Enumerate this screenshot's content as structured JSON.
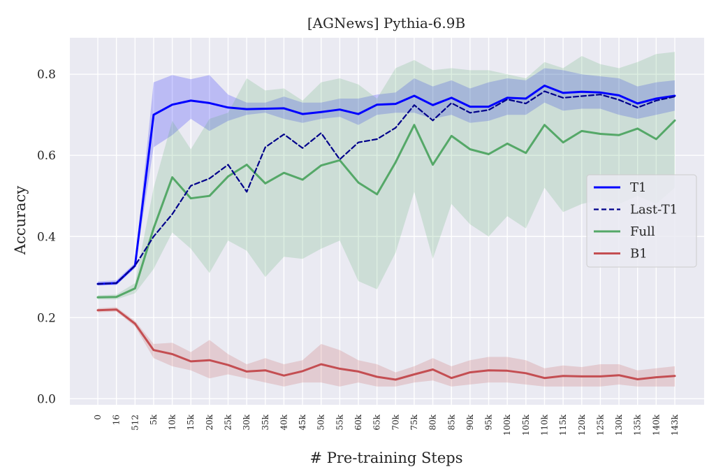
{
  "chart_data": {
    "type": "line",
    "title": "[AGNews] Pythia-6.9B",
    "xlabel": "# Pre-training Steps",
    "ylabel": "Accuracy",
    "categories": [
      "0",
      "16",
      "512",
      "5k",
      "10k",
      "15k",
      "20k",
      "25k",
      "30k",
      "35k",
      "40k",
      "45k",
      "50k",
      "55k",
      "60k",
      "65k",
      "70k",
      "75k",
      "80k",
      "85k",
      "90k",
      "95k",
      "100k",
      "105k",
      "110k",
      "115k",
      "120k",
      "125k",
      "130k",
      "135k",
      "140k",
      "143k"
    ],
    "yticks": [
      "0.0",
      "0.2",
      "0.4",
      "0.6",
      "0.8"
    ],
    "ylim": [
      -0.015,
      0.89
    ],
    "grid": true,
    "legend_position": "right",
    "series": [
      {
        "name": "T1",
        "color": "#0000ff",
        "style": "solid",
        "values": [
          0.283,
          0.285,
          0.328,
          0.7,
          0.725,
          0.735,
          0.729,
          0.718,
          0.714,
          0.715,
          0.716,
          0.702,
          0.707,
          0.713,
          0.702,
          0.725,
          0.727,
          0.747,
          0.724,
          0.742,
          0.72,
          0.72,
          0.742,
          0.74,
          0.772,
          0.754,
          0.757,
          0.755,
          0.748,
          0.728,
          0.74,
          0.747
        ],
        "band_lower": [
          0.279,
          0.28,
          0.322,
          0.62,
          0.65,
          0.69,
          0.66,
          0.685,
          0.7,
          0.705,
          0.69,
          0.68,
          0.69,
          0.695,
          0.675,
          0.7,
          0.705,
          0.705,
          0.69,
          0.7,
          0.68,
          0.685,
          0.7,
          0.7,
          0.73,
          0.71,
          0.715,
          0.715,
          0.7,
          0.69,
          0.7,
          0.71
        ],
        "band_upper": [
          0.289,
          0.292,
          0.335,
          0.78,
          0.798,
          0.788,
          0.798,
          0.75,
          0.73,
          0.73,
          0.745,
          0.73,
          0.73,
          0.74,
          0.74,
          0.75,
          0.755,
          0.79,
          0.77,
          0.785,
          0.765,
          0.78,
          0.79,
          0.785,
          0.815,
          0.81,
          0.8,
          0.795,
          0.79,
          0.77,
          0.78,
          0.785
        ]
      },
      {
        "name": "Last-T1",
        "color": "#00008b",
        "style": "dashed",
        "values": [
          0.283,
          0.285,
          0.328,
          0.4,
          0.455,
          0.525,
          0.543,
          0.577,
          0.51,
          0.62,
          0.652,
          0.618,
          0.655,
          0.59,
          0.632,
          0.64,
          0.668,
          0.724,
          0.686,
          0.729,
          0.705,
          0.712,
          0.738,
          0.728,
          0.758,
          0.742,
          0.746,
          0.75,
          0.737,
          0.718,
          0.735,
          0.745
        ]
      },
      {
        "name": "Full",
        "color": "#55a868",
        "style": "solid",
        "values": [
          0.25,
          0.251,
          0.272,
          0.42,
          0.546,
          0.494,
          0.5,
          0.548,
          0.577,
          0.531,
          0.557,
          0.54,
          0.575,
          0.588,
          0.533,
          0.504,
          0.583,
          0.675,
          0.577,
          0.648,
          0.615,
          0.603,
          0.629,
          0.606,
          0.675,
          0.632,
          0.66,
          0.653,
          0.65,
          0.666,
          0.64,
          0.686
        ],
        "band_lower": [
          0.245,
          0.245,
          0.26,
          0.32,
          0.41,
          0.37,
          0.31,
          0.39,
          0.365,
          0.3,
          0.35,
          0.345,
          0.37,
          0.39,
          0.29,
          0.27,
          0.36,
          0.51,
          0.345,
          0.48,
          0.43,
          0.4,
          0.45,
          0.42,
          0.52,
          0.46,
          0.48,
          0.49,
          0.48,
          0.5,
          0.48,
          0.52
        ],
        "band_upper": [
          0.255,
          0.257,
          0.285,
          0.52,
          0.685,
          0.615,
          0.69,
          0.705,
          0.79,
          0.76,
          0.765,
          0.735,
          0.78,
          0.79,
          0.775,
          0.74,
          0.815,
          0.835,
          0.81,
          0.815,
          0.81,
          0.81,
          0.8,
          0.79,
          0.83,
          0.815,
          0.845,
          0.825,
          0.815,
          0.83,
          0.85,
          0.855
        ]
      },
      {
        "name": "B1",
        "color": "#c44e52",
        "style": "solid",
        "values": [
          0.218,
          0.22,
          0.185,
          0.12,
          0.11,
          0.092,
          0.095,
          0.083,
          0.067,
          0.07,
          0.057,
          0.068,
          0.085,
          0.074,
          0.067,
          0.054,
          0.047,
          0.06,
          0.072,
          0.051,
          0.065,
          0.07,
          0.069,
          0.063,
          0.051,
          0.056,
          0.055,
          0.055,
          0.058,
          0.048,
          0.053,
          0.056
        ],
        "band_lower": [
          0.213,
          0.215,
          0.178,
          0.1,
          0.08,
          0.07,
          0.05,
          0.06,
          0.05,
          0.04,
          0.03,
          0.04,
          0.04,
          0.03,
          0.04,
          0.03,
          0.03,
          0.04,
          0.045,
          0.03,
          0.035,
          0.04,
          0.04,
          0.035,
          0.03,
          0.03,
          0.03,
          0.03,
          0.035,
          0.03,
          0.03,
          0.03
        ],
        "band_upper": [
          0.223,
          0.226,
          0.192,
          0.135,
          0.138,
          0.115,
          0.145,
          0.11,
          0.085,
          0.1,
          0.085,
          0.095,
          0.135,
          0.12,
          0.095,
          0.085,
          0.065,
          0.08,
          0.1,
          0.08,
          0.095,
          0.103,
          0.103,
          0.095,
          0.075,
          0.082,
          0.078,
          0.085,
          0.085,
          0.07,
          0.075,
          0.08
        ]
      }
    ]
  }
}
